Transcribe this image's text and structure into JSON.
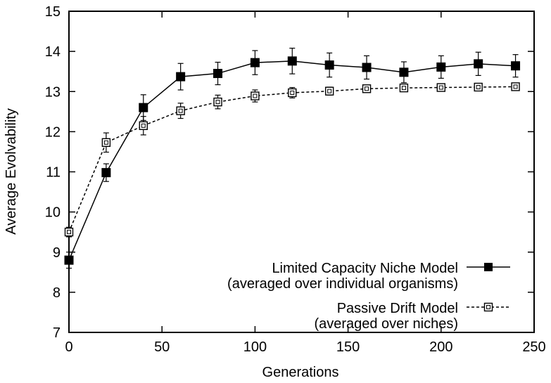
{
  "chart_data": {
    "type": "line",
    "xlabel": "Generations",
    "ylabel": "Average Evolvability",
    "xlim": [
      0,
      250
    ],
    "ylim": [
      7,
      15
    ],
    "xticks": [
      0,
      50,
      100,
      150,
      200,
      250
    ],
    "yticks": [
      7,
      8,
      9,
      10,
      11,
      12,
      13,
      14,
      15
    ],
    "grid": false,
    "legend_position": "bottom-right",
    "series": [
      {
        "name": "Limited Capacity Niche Model",
        "name_line2": "(averaged over individual organisms)",
        "marker": "filled-square",
        "line_style": "solid",
        "x": [
          0,
          20,
          40,
          60,
          80,
          100,
          120,
          140,
          160,
          180,
          200,
          220,
          240
        ],
        "y": [
          8.8,
          10.98,
          12.6,
          13.37,
          13.45,
          13.72,
          13.76,
          13.66,
          13.6,
          13.48,
          13.61,
          13.69,
          13.64
        ],
        "err": [
          0.2,
          0.22,
          0.32,
          0.33,
          0.28,
          0.3,
          0.32,
          0.3,
          0.29,
          0.26,
          0.28,
          0.29,
          0.28
        ]
      },
      {
        "name": "Passive Drift Model",
        "name_line2": "(averaged over niches)",
        "marker": "open-square",
        "line_style": "dashed",
        "x": [
          0,
          20,
          40,
          60,
          80,
          100,
          120,
          140,
          160,
          180,
          200,
          220,
          240
        ],
        "y": [
          9.5,
          11.73,
          12.15,
          12.52,
          12.74,
          12.89,
          12.97,
          13.01,
          13.07,
          13.09,
          13.1,
          13.11,
          13.12
        ],
        "err": [
          0.12,
          0.24,
          0.23,
          0.19,
          0.17,
          0.15,
          0.13,
          0.1,
          0.08,
          0.06,
          0.06,
          0.05,
          0.05
        ]
      }
    ]
  }
}
